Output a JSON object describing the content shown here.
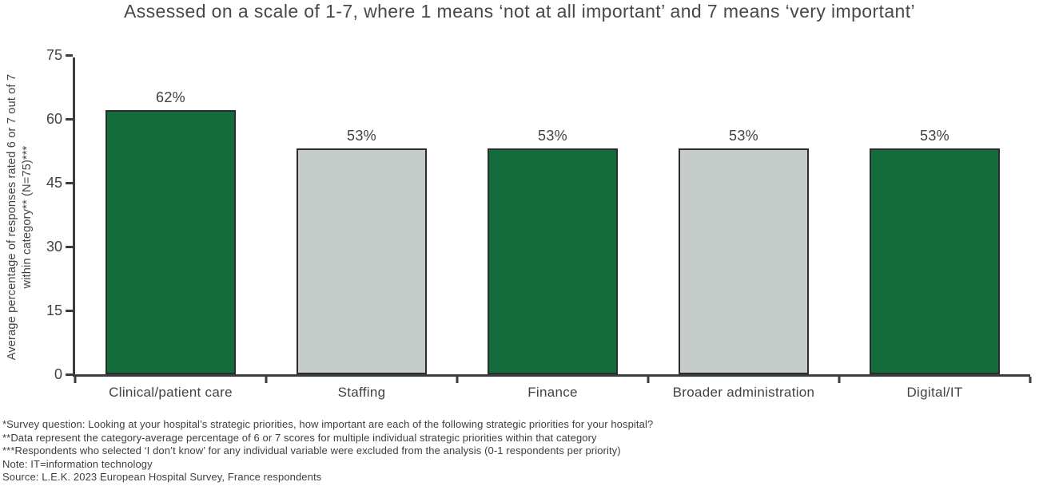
{
  "chart_data": {
    "type": "bar",
    "title": "Assessed on a scale of 1-7, where 1 means ‘not at all important’ and 7 means ‘very important’",
    "categories": [
      "Clinical/patient care",
      "Staffing",
      "Finance",
      "Broader administration",
      "Digital/IT"
    ],
    "values": [
      62,
      53,
      53,
      53,
      53
    ],
    "value_labels": [
      "62%",
      "53%",
      "53%",
      "53%",
      "53%"
    ],
    "bar_colors": [
      "#146c3c",
      "#c5ccc9",
      "#146c3c",
      "#c5ccc9",
      "#146c3c"
    ],
    "ylabel_line1": "Average percentage of responses rated 6 or 7 out of 7",
    "ylabel_line2": "within category** (N=75)***",
    "xlabel": "",
    "yticks": [
      0,
      15,
      30,
      45,
      60,
      75
    ],
    "ylim": [
      0,
      75
    ],
    "grid": false,
    "legend_position": "none"
  },
  "footnotes": [
    "*Survey question: Looking at your hospital’s strategic priorities, how important are each of the following strategic priorities for your hospital?",
    "**Data represent the category-average percentage of 6 or 7 scores for multiple individual strategic priorities within that category",
    "***Respondents who selected ‘I don’t know’ for any individual variable were excluded from the analysis (0-1 respondents per priority)",
    "Note: IT=information technology",
    "Source: L.E.K. 2023 European Hospital Survey, France respondents"
  ],
  "colors": {
    "bar_green": "#146c3c",
    "bar_gray": "#c5ccc9",
    "bar_border": "#2b2d2c",
    "axis": "#3b3e41",
    "text": "#3f4347",
    "title_text": "#45494e",
    "background": "#ffffff"
  }
}
